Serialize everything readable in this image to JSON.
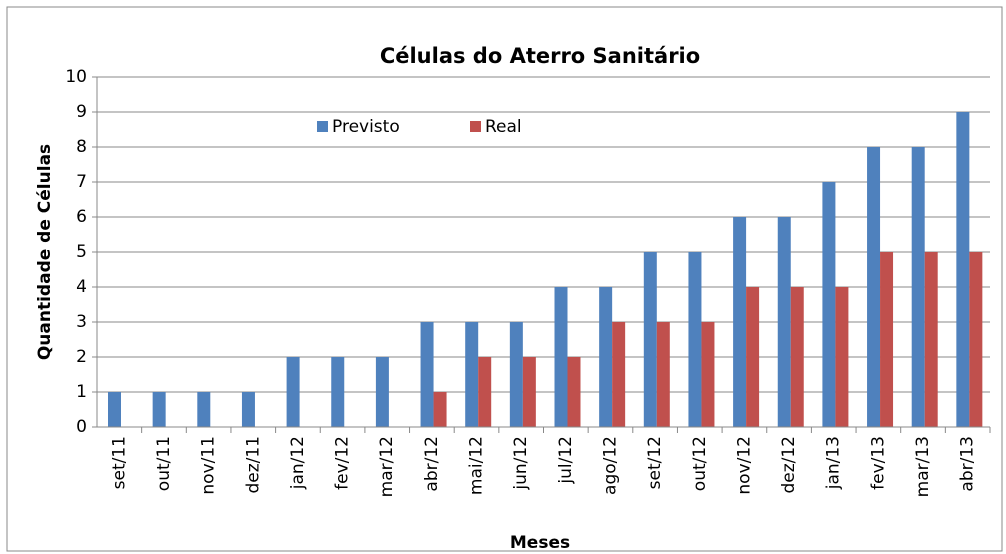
{
  "chart_data": {
    "type": "bar",
    "title": "Células do Aterro Sanitário",
    "x_label": "Meses",
    "y_label": "Quantidade de Células",
    "categories": [
      "set/11",
      "out/11",
      "nov/11",
      "dez/11",
      "jan/12",
      "fev/12",
      "mar/12",
      "abr/12",
      "mai/12",
      "jun/12",
      "jul/12",
      "ago/12",
      "set/12",
      "out/12",
      "nov/12",
      "dez/12",
      "jan/13",
      "fev/13",
      "mar/13",
      "abr/13"
    ],
    "series": [
      {
        "name": "Previsto",
        "color": "#4f81bd",
        "values": [
          1,
          1,
          1,
          1,
          2,
          2,
          2,
          3,
          3,
          3,
          4,
          4,
          5,
          5,
          6,
          6,
          7,
          8,
          8,
          9
        ]
      },
      {
        "name": "Real",
        "color": "#c0504d",
        "values": [
          0,
          0,
          0,
          0,
          0,
          0,
          0,
          1,
          2,
          2,
          2,
          3,
          3,
          3,
          4,
          4,
          4,
          5,
          5,
          5
        ]
      }
    ],
    "ylim": [
      0,
      10
    ],
    "yticks": [
      0,
      1,
      2,
      3,
      4,
      5,
      6,
      7,
      8,
      9,
      10
    ],
    "grid": true,
    "legend": "top"
  }
}
